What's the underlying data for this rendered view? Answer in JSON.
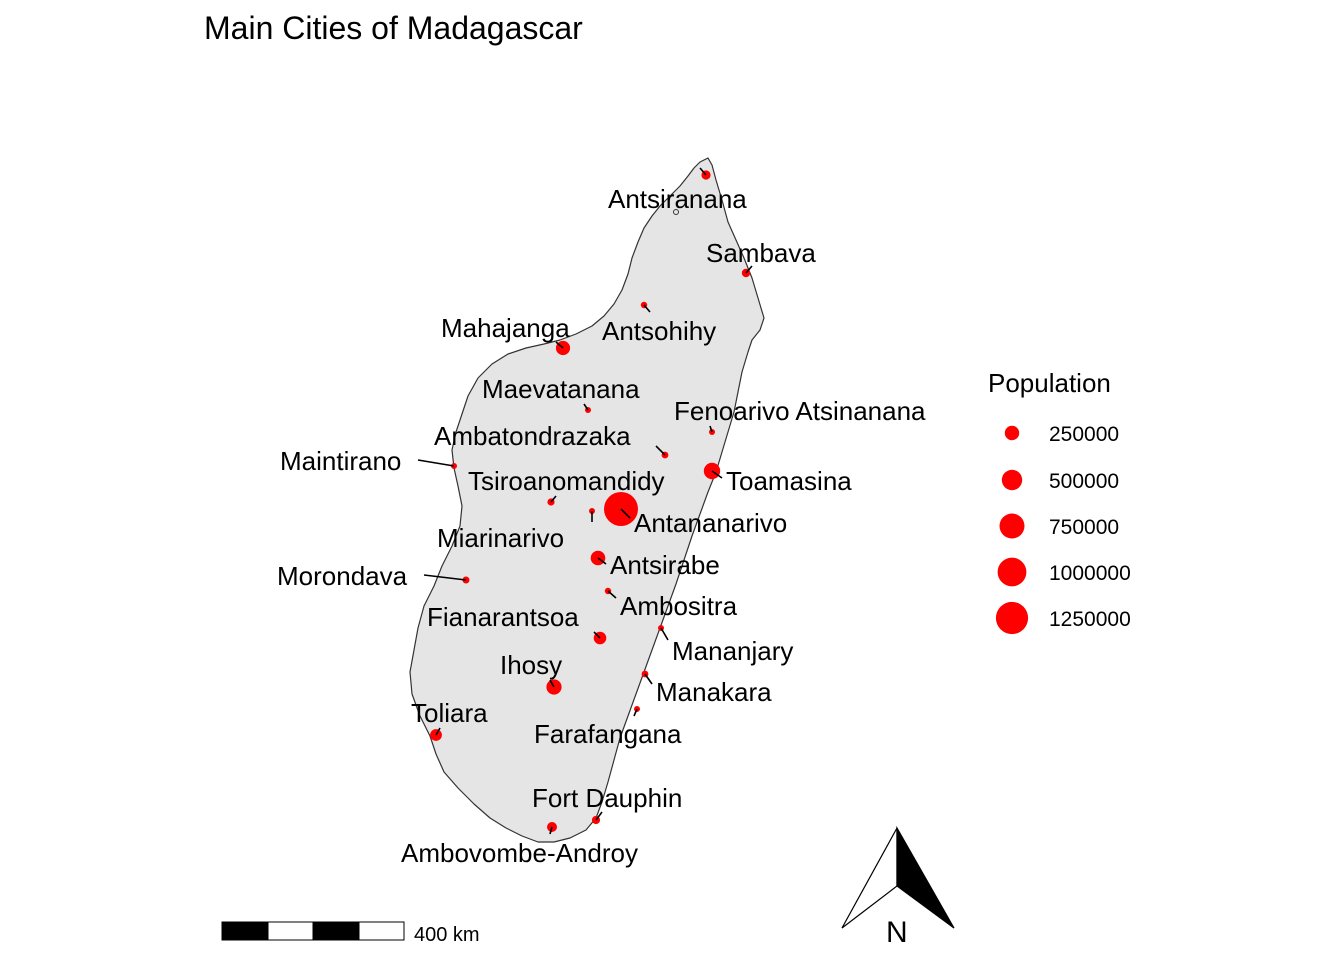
{
  "title": "Main Cities of Madagascar",
  "colors": {
    "land": "#e5e5e5",
    "coast": "#333333",
    "city": "#ff0000"
  },
  "cities": [
    {
      "name": "Antsiranana",
      "population": 100000
    },
    {
      "name": "Sambava",
      "population": 85000
    },
    {
      "name": "Antsohihy",
      "population": 50000
    },
    {
      "name": "Mahajanga",
      "population": 245000
    },
    {
      "name": "Maevatanana",
      "population": 30000
    },
    {
      "name": "Fenoarivo Atsinanana",
      "population": 40000
    },
    {
      "name": "Ambatondrazaka",
      "population": 55000
    },
    {
      "name": "Maintirano",
      "population": 20000
    },
    {
      "name": "Toamasina",
      "population": 326000
    },
    {
      "name": "Tsiroanomandidy",
      "population": 62000
    },
    {
      "name": "Antananarivo",
      "population": 1391000
    },
    {
      "name": "Miarinarivo",
      "population": 12000
    },
    {
      "name": "Antsirabe",
      "population": 258000
    },
    {
      "name": "Morondava",
      "population": 58000
    },
    {
      "name": "Ambositra",
      "population": 48000
    },
    {
      "name": "Fianarantsoa",
      "population": 190000
    },
    {
      "name": "Mananjary",
      "population": 35000
    },
    {
      "name": "Ihosy",
      "population": 280000
    },
    {
      "name": "Manakara",
      "population": 55000
    },
    {
      "name": "Toliara",
      "population": 170000
    },
    {
      "name": "Farafangana",
      "population": 40000
    },
    {
      "name": "Fort Dauphin",
      "population": 80000
    },
    {
      "name": "Ambovombe-Androy",
      "population": 120000
    }
  ],
  "legend": {
    "title": "Population",
    "entries": [
      {
        "label": "250000",
        "value": 250000
      },
      {
        "label": "500000",
        "value": 500000
      },
      {
        "label": "750000",
        "value": 750000
      },
      {
        "label": "1000000",
        "value": 1000000
      },
      {
        "label": "1250000",
        "value": 1250000
      }
    ]
  },
  "scalebar": {
    "label": "400 km"
  },
  "north_arrow": {
    "label": "N"
  }
}
